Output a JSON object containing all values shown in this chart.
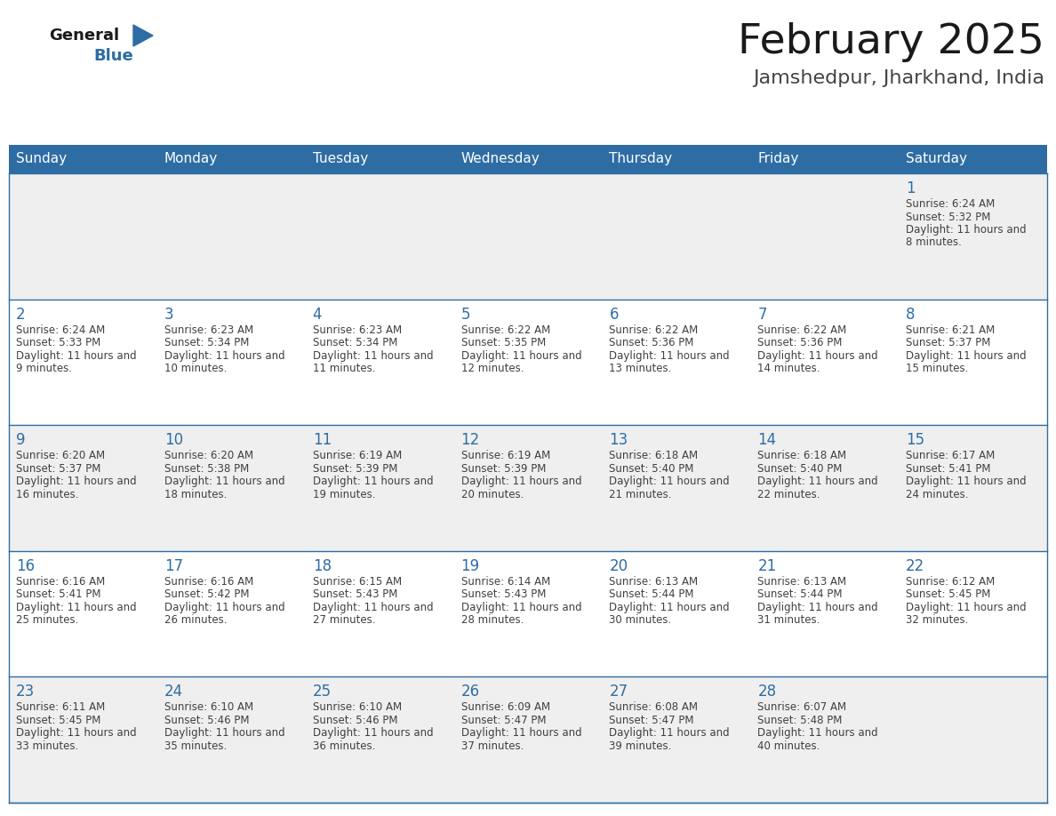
{
  "title": "February 2025",
  "subtitle": "Jamshedpur, Jharkhand, India",
  "days_of_week": [
    "Sunday",
    "Monday",
    "Tuesday",
    "Wednesday",
    "Thursday",
    "Friday",
    "Saturday"
  ],
  "header_bg": "#2E6DA4",
  "header_text_color": "#FFFFFF",
  "row_bg_odd": "#EFEFEF",
  "row_bg_even": "#FFFFFF",
  "cell_border_color": "#2E6DA4",
  "day_number_color": "#2E6DA4",
  "info_text_color": "#404040",
  "background_color": "#FFFFFF",
  "title_color": "#1a1a1a",
  "subtitle_color": "#444444",
  "logo_general_color": "#1a1a1a",
  "logo_blue_color": "#2E6DA4",
  "calendar_data": [
    {
      "day": 1,
      "col": 6,
      "row": 0,
      "sunrise": "6:24 AM",
      "sunset": "5:32 PM",
      "daylight": "11 hours and 8 minutes."
    },
    {
      "day": 2,
      "col": 0,
      "row": 1,
      "sunrise": "6:24 AM",
      "sunset": "5:33 PM",
      "daylight": "11 hours and 9 minutes."
    },
    {
      "day": 3,
      "col": 1,
      "row": 1,
      "sunrise": "6:23 AM",
      "sunset": "5:34 PM",
      "daylight": "11 hours and 10 minutes."
    },
    {
      "day": 4,
      "col": 2,
      "row": 1,
      "sunrise": "6:23 AM",
      "sunset": "5:34 PM",
      "daylight": "11 hours and 11 minutes."
    },
    {
      "day": 5,
      "col": 3,
      "row": 1,
      "sunrise": "6:22 AM",
      "sunset": "5:35 PM",
      "daylight": "11 hours and 12 minutes."
    },
    {
      "day": 6,
      "col": 4,
      "row": 1,
      "sunrise": "6:22 AM",
      "sunset": "5:36 PM",
      "daylight": "11 hours and 13 minutes."
    },
    {
      "day": 7,
      "col": 5,
      "row": 1,
      "sunrise": "6:22 AM",
      "sunset": "5:36 PM",
      "daylight": "11 hours and 14 minutes."
    },
    {
      "day": 8,
      "col": 6,
      "row": 1,
      "sunrise": "6:21 AM",
      "sunset": "5:37 PM",
      "daylight": "11 hours and 15 minutes."
    },
    {
      "day": 9,
      "col": 0,
      "row": 2,
      "sunrise": "6:20 AM",
      "sunset": "5:37 PM",
      "daylight": "11 hours and 16 minutes."
    },
    {
      "day": 10,
      "col": 1,
      "row": 2,
      "sunrise": "6:20 AM",
      "sunset": "5:38 PM",
      "daylight": "11 hours and 18 minutes."
    },
    {
      "day": 11,
      "col": 2,
      "row": 2,
      "sunrise": "6:19 AM",
      "sunset": "5:39 PM",
      "daylight": "11 hours and 19 minutes."
    },
    {
      "day": 12,
      "col": 3,
      "row": 2,
      "sunrise": "6:19 AM",
      "sunset": "5:39 PM",
      "daylight": "11 hours and 20 minutes."
    },
    {
      "day": 13,
      "col": 4,
      "row": 2,
      "sunrise": "6:18 AM",
      "sunset": "5:40 PM",
      "daylight": "11 hours and 21 minutes."
    },
    {
      "day": 14,
      "col": 5,
      "row": 2,
      "sunrise": "6:18 AM",
      "sunset": "5:40 PM",
      "daylight": "11 hours and 22 minutes."
    },
    {
      "day": 15,
      "col": 6,
      "row": 2,
      "sunrise": "6:17 AM",
      "sunset": "5:41 PM",
      "daylight": "11 hours and 24 minutes."
    },
    {
      "day": 16,
      "col": 0,
      "row": 3,
      "sunrise": "6:16 AM",
      "sunset": "5:41 PM",
      "daylight": "11 hours and 25 minutes."
    },
    {
      "day": 17,
      "col": 1,
      "row": 3,
      "sunrise": "6:16 AM",
      "sunset": "5:42 PM",
      "daylight": "11 hours and 26 minutes."
    },
    {
      "day": 18,
      "col": 2,
      "row": 3,
      "sunrise": "6:15 AM",
      "sunset": "5:43 PM",
      "daylight": "11 hours and 27 minutes."
    },
    {
      "day": 19,
      "col": 3,
      "row": 3,
      "sunrise": "6:14 AM",
      "sunset": "5:43 PM",
      "daylight": "11 hours and 28 minutes."
    },
    {
      "day": 20,
      "col": 4,
      "row": 3,
      "sunrise": "6:13 AM",
      "sunset": "5:44 PM",
      "daylight": "11 hours and 30 minutes."
    },
    {
      "day": 21,
      "col": 5,
      "row": 3,
      "sunrise": "6:13 AM",
      "sunset": "5:44 PM",
      "daylight": "11 hours and 31 minutes."
    },
    {
      "day": 22,
      "col": 6,
      "row": 3,
      "sunrise": "6:12 AM",
      "sunset": "5:45 PM",
      "daylight": "11 hours and 32 minutes."
    },
    {
      "day": 23,
      "col": 0,
      "row": 4,
      "sunrise": "6:11 AM",
      "sunset": "5:45 PM",
      "daylight": "11 hours and 33 minutes."
    },
    {
      "day": 24,
      "col": 1,
      "row": 4,
      "sunrise": "6:10 AM",
      "sunset": "5:46 PM",
      "daylight": "11 hours and 35 minutes."
    },
    {
      "day": 25,
      "col": 2,
      "row": 4,
      "sunrise": "6:10 AM",
      "sunset": "5:46 PM",
      "daylight": "11 hours and 36 minutes."
    },
    {
      "day": 26,
      "col": 3,
      "row": 4,
      "sunrise": "6:09 AM",
      "sunset": "5:47 PM",
      "daylight": "11 hours and 37 minutes."
    },
    {
      "day": 27,
      "col": 4,
      "row": 4,
      "sunrise": "6:08 AM",
      "sunset": "5:47 PM",
      "daylight": "11 hours and 39 minutes."
    },
    {
      "day": 28,
      "col": 5,
      "row": 4,
      "sunrise": "6:07 AM",
      "sunset": "5:48 PM",
      "daylight": "11 hours and 40 minutes."
    }
  ]
}
